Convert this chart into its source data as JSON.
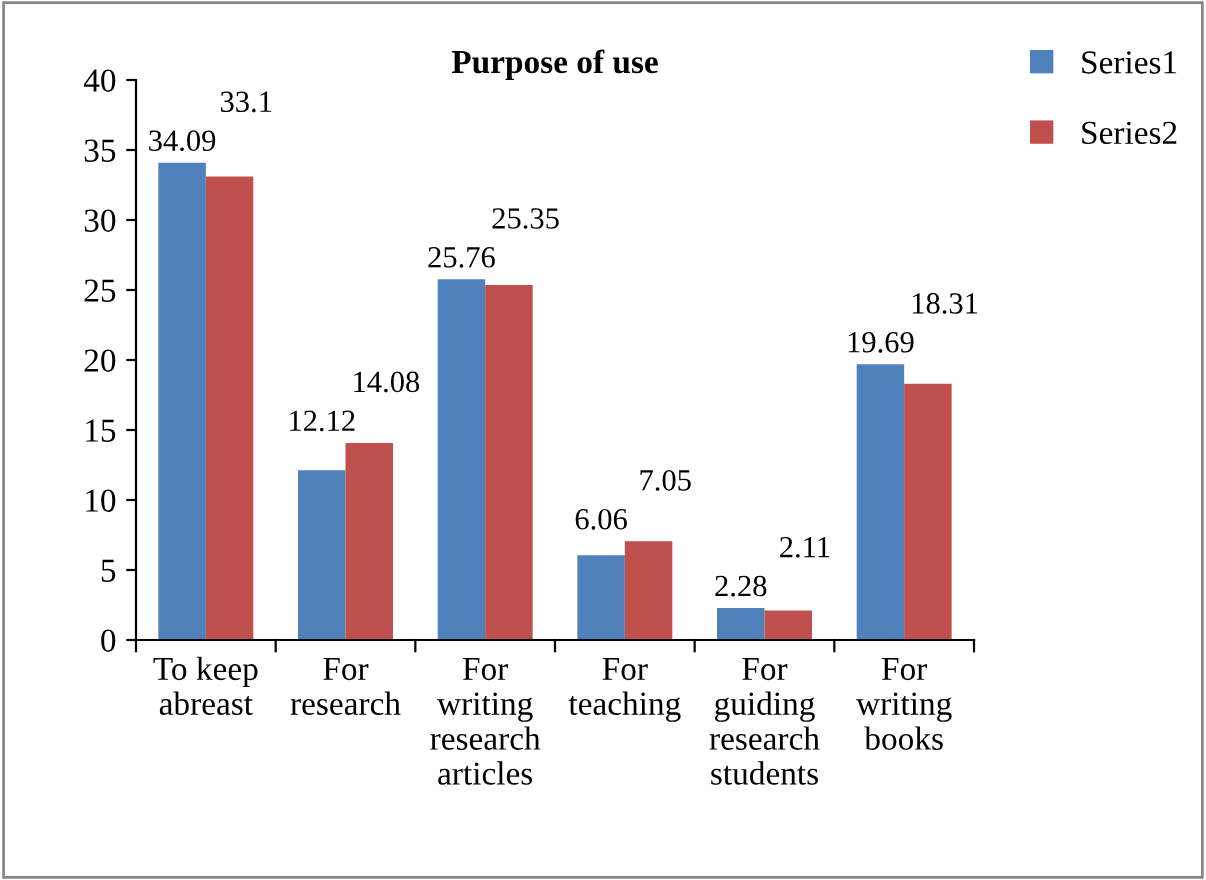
{
  "chart_data": {
    "type": "bar",
    "title": "Purpose of use",
    "categories": [
      "To keep\nabreast",
      "For\nresearch",
      "For\nwriting\nresearch\narticles",
      "For\nteaching",
      "For\nguiding\nresearch\nstudents",
      "For\nwriting\nbooks"
    ],
    "series": [
      {
        "name": "Series1",
        "color": "#4f81bd",
        "values": [
          34.09,
          12.12,
          25.76,
          6.06,
          2.28,
          19.69
        ]
      },
      {
        "name": "Series2",
        "color": "#c0504d",
        "values": [
          33.1,
          14.08,
          25.35,
          7.05,
          2.11,
          18.31
        ]
      }
    ],
    "ylim": [
      0,
      40
    ],
    "yticks": [
      0,
      5,
      10,
      15,
      20,
      25,
      30,
      35,
      40
    ],
    "data_labels": true,
    "grid": false,
    "legend": "top right"
  }
}
